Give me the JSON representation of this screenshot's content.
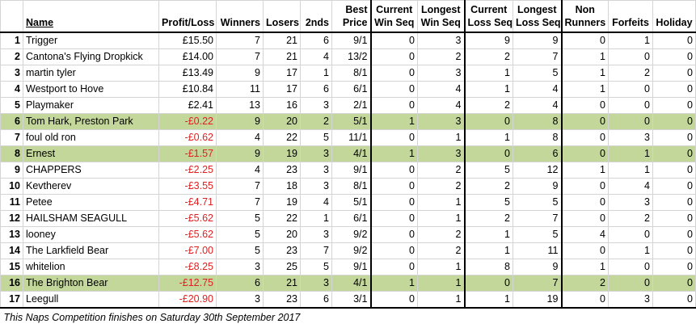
{
  "headers": {
    "rank": "",
    "name": "Name",
    "profit": "Profit/Loss",
    "winners": "Winners",
    "losers": "Losers",
    "seconds": "2nds",
    "best_price": [
      "Best",
      "Price"
    ],
    "current_win": [
      "Current",
      "Win Seq"
    ],
    "longest_win": [
      "Longest",
      "Win Seq"
    ],
    "current_loss": [
      "Current",
      "Loss Seq"
    ],
    "longest_loss": [
      "Longest",
      "Loss Seq"
    ],
    "non_runners": [
      "Non",
      "Runners"
    ],
    "forfeits": "Forfeits",
    "holiday": "Holiday"
  },
  "rows": [
    {
      "rank": "1",
      "name": "Trigger",
      "profit": "£15.50",
      "winners": "7",
      "losers": "21",
      "seconds": "6",
      "best": "9/1",
      "cur_win": "0",
      "long_win": "3",
      "cur_loss": "9",
      "long_loss": "9",
      "non_runners": "0",
      "forfeits": "1",
      "holiday": "0",
      "negative": false,
      "highlight": false
    },
    {
      "rank": "2",
      "name": "Cantona's Flying Dropkick",
      "profit": "£14.00",
      "winners": "7",
      "losers": "21",
      "seconds": "4",
      "best": "13/2",
      "cur_win": "0",
      "long_win": "2",
      "cur_loss": "2",
      "long_loss": "7",
      "non_runners": "1",
      "forfeits": "0",
      "holiday": "0",
      "negative": false,
      "highlight": false
    },
    {
      "rank": "3",
      "name": "martin tyler",
      "profit": "£13.49",
      "winners": "9",
      "losers": "17",
      "seconds": "1",
      "best": "8/1",
      "cur_win": "0",
      "long_win": "3",
      "cur_loss": "1",
      "long_loss": "5",
      "non_runners": "1",
      "forfeits": "2",
      "holiday": "0",
      "negative": false,
      "highlight": false
    },
    {
      "rank": "4",
      "name": "Westport to Hove",
      "profit": "£10.84",
      "winners": "11",
      "losers": "17",
      "seconds": "6",
      "best": "6/1",
      "cur_win": "0",
      "long_win": "4",
      "cur_loss": "1",
      "long_loss": "4",
      "non_runners": "1",
      "forfeits": "0",
      "holiday": "0",
      "negative": false,
      "highlight": false
    },
    {
      "rank": "5",
      "name": "Playmaker",
      "profit": "£2.41",
      "winners": "13",
      "losers": "16",
      "seconds": "3",
      "best": "2/1",
      "cur_win": "0",
      "long_win": "4",
      "cur_loss": "2",
      "long_loss": "4",
      "non_runners": "0",
      "forfeits": "0",
      "holiday": "0",
      "negative": false,
      "highlight": false
    },
    {
      "rank": "6",
      "name": "Tom Hark, Preston Park",
      "profit": "-£0.22",
      "winners": "9",
      "losers": "20",
      "seconds": "2",
      "best": "5/1",
      "cur_win": "1",
      "long_win": "3",
      "cur_loss": "0",
      "long_loss": "8",
      "non_runners": "0",
      "forfeits": "0",
      "holiday": "0",
      "negative": true,
      "highlight": true
    },
    {
      "rank": "7",
      "name": "foul old ron",
      "profit": "-£0.62",
      "winners": "4",
      "losers": "22",
      "seconds": "5",
      "best": "11/1",
      "cur_win": "0",
      "long_win": "1",
      "cur_loss": "1",
      "long_loss": "8",
      "non_runners": "0",
      "forfeits": "3",
      "holiday": "0",
      "negative": true,
      "highlight": false
    },
    {
      "rank": "8",
      "name": "Ernest",
      "profit": "-£1.57",
      "winners": "9",
      "losers": "19",
      "seconds": "3",
      "best": "4/1",
      "cur_win": "1",
      "long_win": "3",
      "cur_loss": "0",
      "long_loss": "6",
      "non_runners": "0",
      "forfeits": "1",
      "holiday": "0",
      "negative": true,
      "highlight": true
    },
    {
      "rank": "9",
      "name": "CHAPPERS",
      "profit": "-£2.25",
      "winners": "4",
      "losers": "23",
      "seconds": "3",
      "best": "9/1",
      "cur_win": "0",
      "long_win": "2",
      "cur_loss": "5",
      "long_loss": "12",
      "non_runners": "1",
      "forfeits": "1",
      "holiday": "0",
      "negative": true,
      "highlight": false
    },
    {
      "rank": "10",
      "name": "Kevtherev",
      "profit": "-£3.55",
      "winners": "7",
      "losers": "18",
      "seconds": "3",
      "best": "8/1",
      "cur_win": "0",
      "long_win": "2",
      "cur_loss": "2",
      "long_loss": "9",
      "non_runners": "0",
      "forfeits": "4",
      "holiday": "0",
      "negative": true,
      "highlight": false
    },
    {
      "rank": "11",
      "name": "Petee",
      "profit": "-£4.71",
      "winners": "7",
      "losers": "19",
      "seconds": "4",
      "best": "5/1",
      "cur_win": "0",
      "long_win": "1",
      "cur_loss": "5",
      "long_loss": "5",
      "non_runners": "0",
      "forfeits": "3",
      "holiday": "0",
      "negative": true,
      "highlight": false
    },
    {
      "rank": "12",
      "name": "HAILSHAM SEAGULL",
      "profit": "-£5.62",
      "winners": "5",
      "losers": "22",
      "seconds": "1",
      "best": "6/1",
      "cur_win": "0",
      "long_win": "1",
      "cur_loss": "2",
      "long_loss": "7",
      "non_runners": "0",
      "forfeits": "2",
      "holiday": "0",
      "negative": true,
      "highlight": false
    },
    {
      "rank": "13",
      "name": "looney",
      "profit": "-£5.62",
      "winners": "5",
      "losers": "20",
      "seconds": "3",
      "best": "9/2",
      "cur_win": "0",
      "long_win": "2",
      "cur_loss": "1",
      "long_loss": "5",
      "non_runners": "4",
      "forfeits": "0",
      "holiday": "0",
      "negative": true,
      "highlight": false
    },
    {
      "rank": "14",
      "name": "The Larkfield Bear",
      "profit": "-£7.00",
      "winners": "5",
      "losers": "23",
      "seconds": "7",
      "best": "9/2",
      "cur_win": "0",
      "long_win": "2",
      "cur_loss": "1",
      "long_loss": "11",
      "non_runners": "0",
      "forfeits": "1",
      "holiday": "0",
      "negative": true,
      "highlight": false
    },
    {
      "rank": "15",
      "name": "whitelion",
      "profit": "-£8.25",
      "winners": "3",
      "losers": "25",
      "seconds": "5",
      "best": "9/1",
      "cur_win": "0",
      "long_win": "1",
      "cur_loss": "8",
      "long_loss": "9",
      "non_runners": "1",
      "forfeits": "0",
      "holiday": "0",
      "negative": true,
      "highlight": false
    },
    {
      "rank": "16",
      "name": "The Brighton Bear",
      "profit": "-£12.75",
      "winners": "6",
      "losers": "21",
      "seconds": "3",
      "best": "4/1",
      "cur_win": "1",
      "long_win": "1",
      "cur_loss": "0",
      "long_loss": "7",
      "non_runners": "2",
      "forfeits": "0",
      "holiday": "0",
      "negative": true,
      "highlight": true
    },
    {
      "rank": "17",
      "name": "Leegull",
      "profit": "-£20.90",
      "winners": "3",
      "losers": "23",
      "seconds": "6",
      "best": "3/1",
      "cur_win": "0",
      "long_win": "1",
      "cur_loss": "1",
      "long_loss": "19",
      "non_runners": "0",
      "forfeits": "3",
      "holiday": "0",
      "negative": true,
      "highlight": false
    }
  ],
  "footer": "This Naps Competition finishes on Saturday 30th September 2017",
  "colors": {
    "highlight": "#c4d79b",
    "negative": "#e02020",
    "gridline": "#d4d4d4"
  }
}
